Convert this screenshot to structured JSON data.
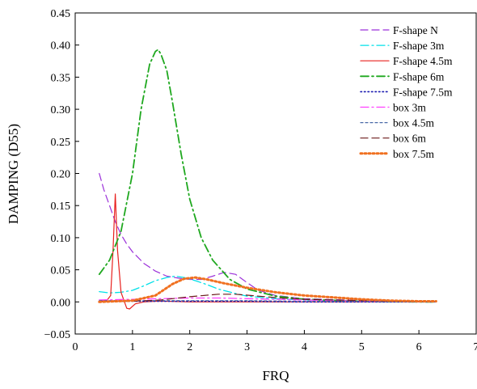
{
  "chart_data": {
    "type": "line",
    "title": "",
    "xlabel": "FRQ",
    "ylabel": "DAMPING (D55)",
    "xlim": [
      0,
      7
    ],
    "ylim": [
      -0.05,
      0.45
    ],
    "x_ticks": [
      0,
      1,
      2,
      3,
      4,
      5,
      6,
      7
    ],
    "x_tick_labels": [
      "0",
      "1",
      "2",
      "3",
      "4",
      "5",
      "6",
      "7"
    ],
    "y_ticks": [
      -0.05,
      0,
      0.05,
      0.1,
      0.15,
      0.2,
      0.25,
      0.3,
      0.35,
      0.4,
      0.45
    ],
    "y_tick_labels": [
      "−0.05",
      "0.00",
      "0.05",
      "0.10",
      "0.15",
      "0.20",
      "0.25",
      "0.30",
      "0.35",
      "0.40",
      "0.45"
    ],
    "grid": false,
    "legend_position": "top-right",
    "series": [
      {
        "name": "F-shape N",
        "color": "#9b30d9",
        "dash": "dash",
        "x": [
          0.42,
          0.5,
          0.6,
          0.7,
          0.8,
          0.9,
          1.0,
          1.2,
          1.4,
          1.6,
          1.8,
          2.0,
          2.2,
          2.4,
          2.6,
          2.8,
          3.0,
          3.2,
          3.5,
          4.0,
          5.0,
          6.0,
          6.3
        ],
        "y": [
          0.2,
          0.175,
          0.15,
          0.125,
          0.105,
          0.09,
          0.078,
          0.06,
          0.048,
          0.04,
          0.037,
          0.035,
          0.035,
          0.04,
          0.046,
          0.043,
          0.03,
          0.018,
          0.01,
          0.005,
          0.002,
          0.001,
          0.001
        ]
      },
      {
        "name": "F-shape 3m",
        "color": "#00e0e8",
        "dash": "dashdot",
        "x": [
          0.42,
          0.6,
          0.8,
          1.0,
          1.2,
          1.4,
          1.6,
          1.75,
          1.9,
          2.1,
          2.3,
          2.5,
          2.8,
          3.0,
          3.5,
          4.0,
          5.0,
          6.0,
          6.3
        ],
        "y": [
          0.016,
          0.014,
          0.015,
          0.018,
          0.025,
          0.033,
          0.038,
          0.04,
          0.038,
          0.033,
          0.027,
          0.02,
          0.013,
          0.009,
          0.005,
          0.003,
          0.001,
          0.001,
          0.001
        ]
      },
      {
        "name": "F-shape 4.5m",
        "color": "#e8201e",
        "dash": "solid",
        "x": [
          0.42,
          0.55,
          0.62,
          0.66,
          0.7,
          0.74,
          0.8,
          0.9,
          0.95,
          1.05,
          1.2,
          1.4,
          1.6,
          2.0,
          3.0,
          4.0,
          5.0,
          6.0,
          6.3
        ],
        "y": [
          0.001,
          0.002,
          0.01,
          0.08,
          0.168,
          0.08,
          0.015,
          -0.01,
          -0.011,
          -0.003,
          0.0,
          0.001,
          0.001,
          0.0,
          0.0,
          0.0,
          0.0,
          0.0,
          0.0
        ]
      },
      {
        "name": "F-shape 6m",
        "color": "#1fa81f",
        "dash": "dashdotbold",
        "x": [
          0.42,
          0.6,
          0.8,
          1.0,
          1.15,
          1.3,
          1.4,
          1.45,
          1.5,
          1.6,
          1.7,
          1.85,
          2.0,
          2.2,
          2.4,
          2.7,
          3.0,
          3.5,
          4.0,
          5.0,
          6.0,
          6.3
        ],
        "y": [
          0.043,
          0.065,
          0.11,
          0.2,
          0.3,
          0.37,
          0.39,
          0.393,
          0.385,
          0.36,
          0.31,
          0.23,
          0.16,
          0.1,
          0.065,
          0.035,
          0.02,
          0.009,
          0.004,
          0.001,
          0.0,
          0.0
        ]
      },
      {
        "name": "F-shape 7.5m",
        "color": "#1a1ab0",
        "dash": "dot",
        "x": [
          0.42,
          1.0,
          2.0,
          3.0,
          4.0,
          5.0,
          6.0,
          6.3
        ],
        "y": [
          0.001,
          0.001,
          0.001,
          0.001,
          0.0,
          0.0,
          0.0,
          0.0
        ]
      },
      {
        "name": "box 3m",
        "color": "#ff40ff",
        "dash": "dashdot",
        "x": [
          0.42,
          1.0,
          1.5,
          2.0,
          2.5,
          3.0,
          3.5,
          4.0,
          5.0,
          6.0,
          6.3
        ],
        "y": [
          0.003,
          0.004,
          0.005,
          0.006,
          0.006,
          0.005,
          0.004,
          0.003,
          0.001,
          0.001,
          0.0
        ]
      },
      {
        "name": "box 4.5m",
        "color": "#4a6aa8",
        "dash": "shortdash",
        "x": [
          0.42,
          1.0,
          2.0,
          3.0,
          4.0,
          5.0,
          6.0,
          6.3
        ],
        "y": [
          0.002,
          0.002,
          0.002,
          0.002,
          0.001,
          0.001,
          0.0,
          0.0
        ]
      },
      {
        "name": "box 6m",
        "color": "#6b1a1a",
        "dash": "dash",
        "x": [
          0.42,
          1.0,
          1.5,
          2.0,
          2.5,
          2.8,
          3.2,
          3.6,
          4.0,
          5.0,
          6.0,
          6.3
        ],
        "y": [
          0.001,
          0.001,
          0.003,
          0.008,
          0.012,
          0.012,
          0.009,
          0.006,
          0.004,
          0.002,
          0.001,
          0.001
        ]
      },
      {
        "name": "box 7.5m",
        "color": "#f07020",
        "dash": "dotbold",
        "x": [
          0.42,
          1.0,
          1.4,
          1.7,
          1.9,
          2.1,
          2.3,
          2.6,
          3.0,
          3.5,
          4.0,
          4.5,
          5.0,
          5.5,
          6.0,
          6.3
        ],
        "y": [
          0.0,
          0.002,
          0.01,
          0.028,
          0.036,
          0.038,
          0.035,
          0.029,
          0.022,
          0.015,
          0.01,
          0.007,
          0.004,
          0.002,
          0.001,
          0.001
        ]
      }
    ]
  }
}
